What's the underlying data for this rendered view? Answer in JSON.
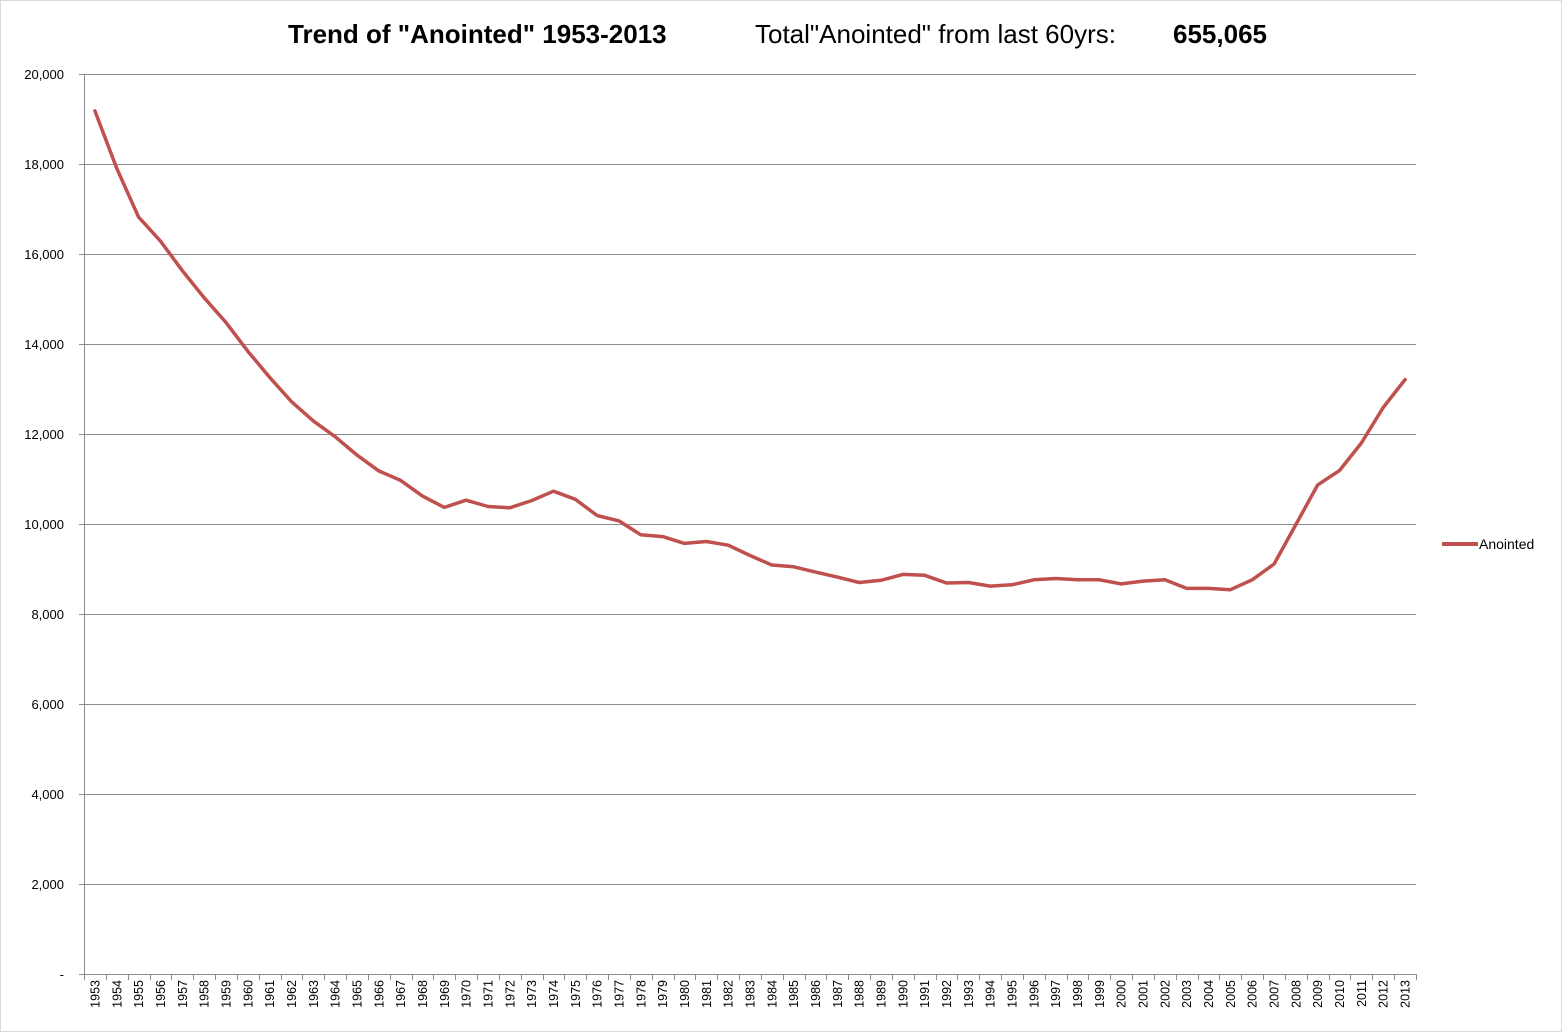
{
  "chart_data": {
    "type": "line",
    "title": "Trend of \"Anointed\" 1953-2013",
    "total_label": "Total\"Anointed\" from last 60yrs:",
    "total_value": "655,065",
    "ylim": [
      0,
      20000
    ],
    "y_ticks": [
      {
        "value": 0,
        "label": "-"
      },
      {
        "value": 2000,
        "label": "2,000"
      },
      {
        "value": 4000,
        "label": "4,000"
      },
      {
        "value": 6000,
        "label": "6,000"
      },
      {
        "value": 8000,
        "label": "8,000"
      },
      {
        "value": 10000,
        "label": "10,000"
      },
      {
        "value": 12000,
        "label": "12,000"
      },
      {
        "value": 14000,
        "label": "14,000"
      },
      {
        "value": 16000,
        "label": "16,000"
      },
      {
        "value": 18000,
        "label": "18,000"
      },
      {
        "value": 20000,
        "label": "20,000"
      }
    ],
    "grid": true,
    "legend_position": "right",
    "color": "#c0504d",
    "categories": [
      "1953",
      "1954",
      "1955",
      "1956",
      "1957",
      "1958",
      "1959",
      "1960",
      "1961",
      "1962",
      "1963",
      "1964",
      "1965",
      "1966",
      "1967",
      "1968",
      "1969",
      "1970",
      "1971",
      "1972",
      "1973",
      "1974",
      "1975",
      "1976",
      "1977",
      "1978",
      "1979",
      "1980",
      "1981",
      "1982",
      "1983",
      "1984",
      "1985",
      "1986",
      "1987",
      "1988",
      "1989",
      "1990",
      "1991",
      "1992",
      "1993",
      "1994",
      "1995",
      "1996",
      "1997",
      "1998",
      "1999",
      "2000",
      "2001",
      "2002",
      "2003",
      "2004",
      "2005",
      "2006",
      "2007",
      "2008",
      "2009",
      "2010",
      "2011",
      "2012",
      "2013"
    ],
    "series": [
      {
        "name": "Anointed",
        "values": [
          19180,
          17900,
          16820,
          16290,
          15630,
          15030,
          14480,
          13840,
          13260,
          12720,
          12290,
          11940,
          11530,
          11180,
          10970,
          10620,
          10370,
          10530,
          10390,
          10360,
          10520,
          10730,
          10550,
          10190,
          10070,
          9760,
          9720,
          9570,
          9610,
          9530,
          9300,
          9090,
          9050,
          8930,
          8820,
          8700,
          8750,
          8880,
          8860,
          8690,
          8700,
          8620,
          8650,
          8760,
          8790,
          8760,
          8760,
          8670,
          8730,
          8760,
          8570,
          8570,
          8540,
          8760,
          9110,
          9990,
          10870,
          11190,
          11800,
          12590,
          13210
        ]
      }
    ]
  }
}
